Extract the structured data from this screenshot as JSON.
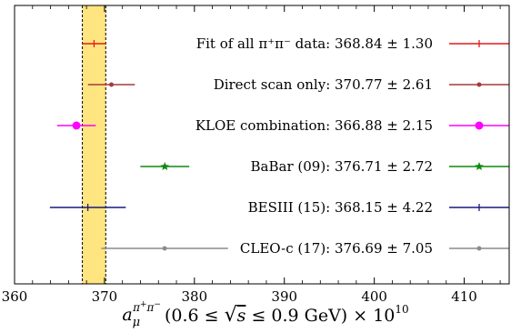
{
  "chart_data": {
    "type": "scatter",
    "subtype": "forest-plot",
    "title": "",
    "xlabel": "a_μ^{π+π−} (0.6 ≤ √s ≤ 0.9 GeV) × 10^10",
    "xlabel_parts": {
      "a": "a",
      "sub": "μ",
      "sup": "π",
      "sup_plus": "+",
      "sup_pi2": "π",
      "sup_minus": "−",
      "range": "(0.6 ≤ ",
      "sqrt": "√",
      "s": "s",
      "range2": " ≤ 0.9 GeV) × 10",
      "exp": "10"
    },
    "xlim": [
      360,
      415
    ],
    "xticks": [
      360,
      370,
      380,
      390,
      400,
      410
    ],
    "grid": false,
    "band": {
      "center": 368.84,
      "halfwidth": 1.3,
      "color": "#FFE57F",
      "edge": "#000000"
    },
    "series": [
      {
        "name": "Fit of all π⁺π⁻ data: 368.84 ± 1.30",
        "value": 368.84,
        "error": 1.3,
        "color": "#e8191c",
        "marker": "plus"
      },
      {
        "name": "Direct scan only: 370.77 ± 2.61",
        "value": 370.77,
        "error": 2.61,
        "color": "#a63a3d",
        "marker": "dot"
      },
      {
        "name": "KLOE combination: 366.88 ± 2.15",
        "value": 366.88,
        "error": 2.15,
        "color": "#ff00ff",
        "marker": "circle"
      },
      {
        "name": "BaBar (09): 376.71 ± 2.72",
        "value": 376.71,
        "error": 2.72,
        "color": "#0e8a0e",
        "marker": "star"
      },
      {
        "name": "BESIII (15): 368.15 ± 4.22",
        "value": 368.15,
        "error": 4.22,
        "color": "#1a1a7a",
        "marker": "plus"
      },
      {
        "name": "CLEO-c (17): 376.69 ± 7.05",
        "value": 376.69,
        "error": 7.05,
        "color": "#8c8c8c",
        "marker": "dot"
      }
    ]
  }
}
